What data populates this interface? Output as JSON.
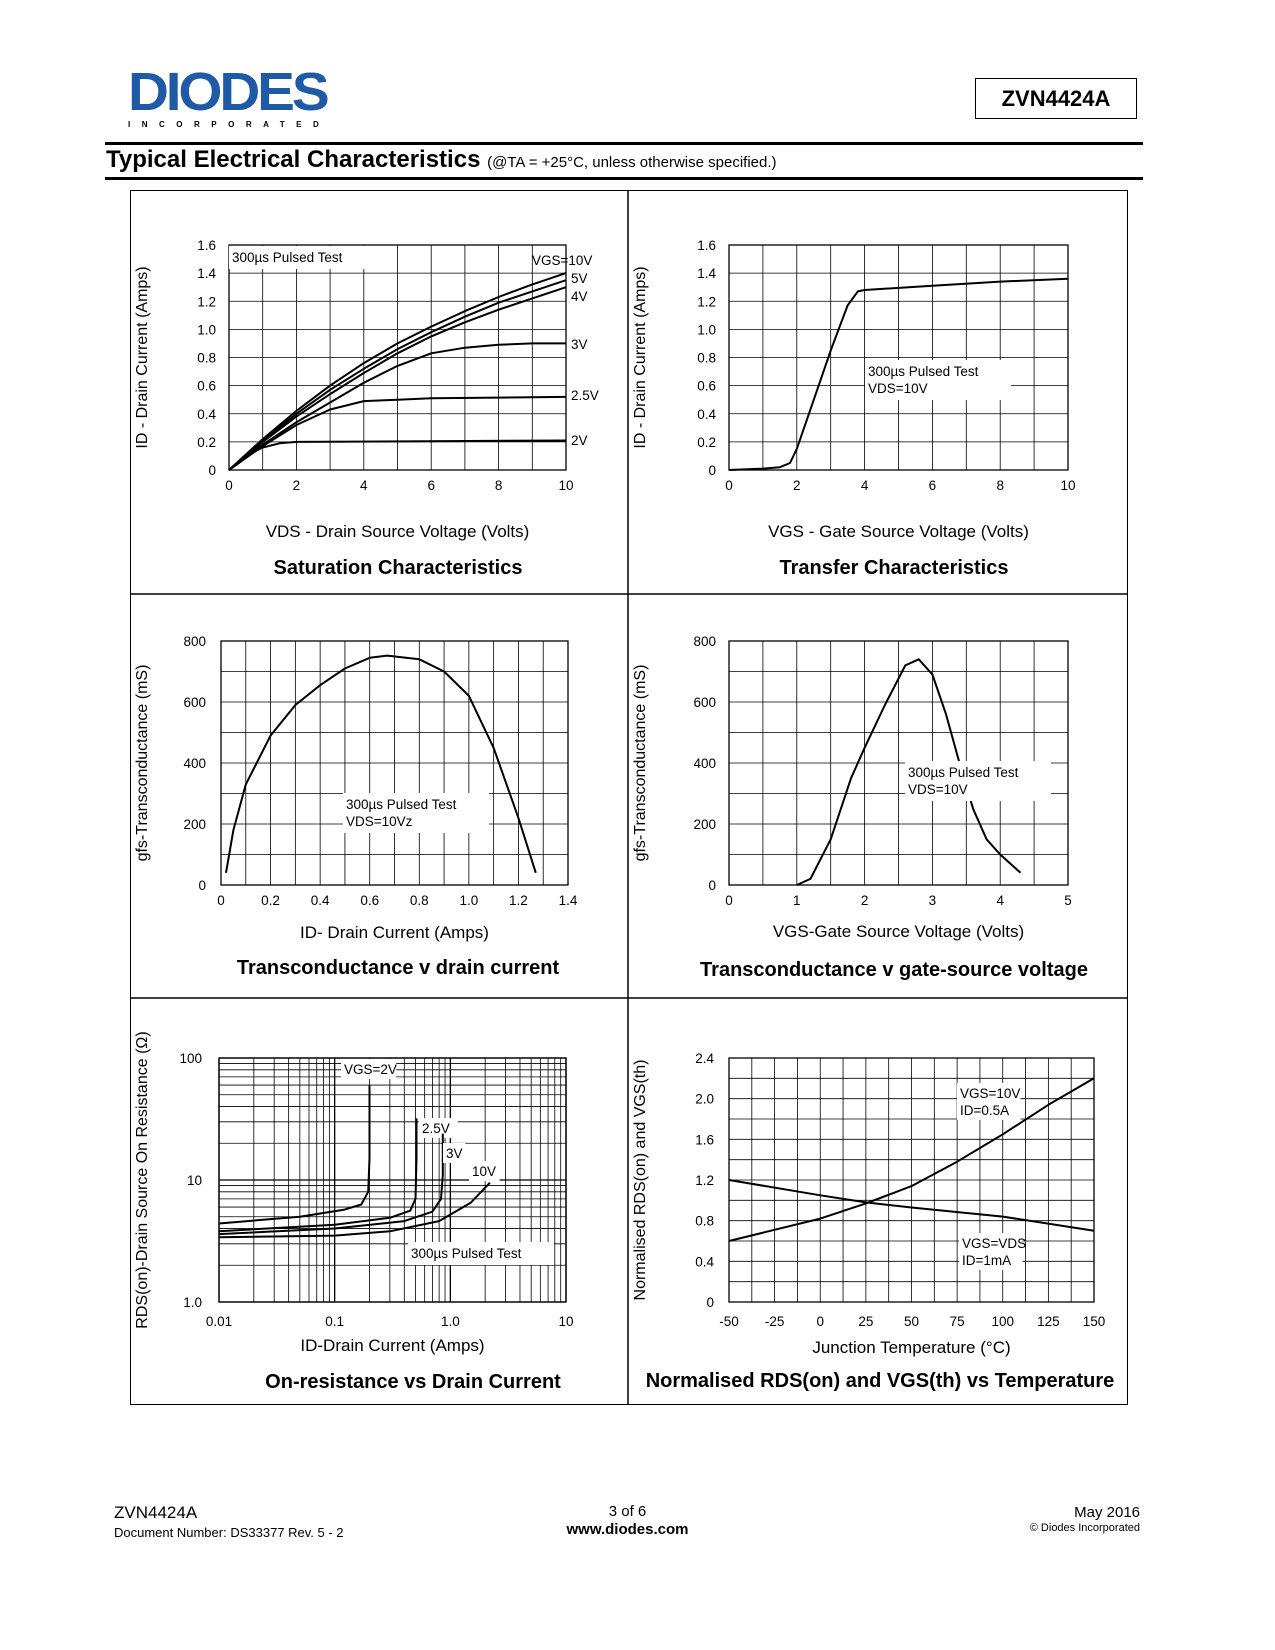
{
  "header": {
    "logo_text": "DIODES",
    "logo_subtext": "INCORPORATED",
    "part_number": "ZVN4424A",
    "section_title": "Typical Electrical Characteristics",
    "section_condition": "(@TA = +25°C, unless otherwise specified.)"
  },
  "footer": {
    "part_number": "ZVN4424A",
    "document_number": "Document Number: DS33377  Rev. 5 - 2",
    "page": "3 of 6",
    "website": "www.diodes.com",
    "date": "May 2016",
    "copyright": "© Diodes Incorporated"
  },
  "colors": {
    "logo_blue": "#1f5aa6",
    "ink": "#000000"
  },
  "chart_data": [
    {
      "type": "line",
      "title": "Saturation Characteristics",
      "xlabel": "VDS - Drain Source Voltage (Volts)",
      "ylabel": "ID - Drain Current (Amps)",
      "xlim": [
        0,
        10
      ],
      "ylim": [
        0,
        1.6
      ],
      "grid": true,
      "xticks": [
        0,
        2,
        4,
        6,
        8,
        10
      ],
      "yticks": [
        "0",
        "0.2",
        "0.4",
        "0.6",
        "0.8",
        "1.0",
        "1.2",
        "1.4",
        "1.6"
      ],
      "annotations": [
        [
          "300µs Pulsed Test"
        ]
      ],
      "series": [
        {
          "name": "VGS=10V",
          "points": [
            [
              0,
              0
            ],
            [
              1,
              0.22
            ],
            [
              2,
              0.42
            ],
            [
              3,
              0.6
            ],
            [
              4,
              0.76
            ],
            [
              5,
              0.9
            ],
            [
              6,
              1.02
            ],
            [
              7,
              1.13
            ],
            [
              8,
              1.23
            ],
            [
              9,
              1.32
            ],
            [
              10,
              1.4
            ]
          ]
        },
        {
          "name": "5V",
          "points": [
            [
              0,
              0
            ],
            [
              1,
              0.21
            ],
            [
              2,
              0.4
            ],
            [
              3,
              0.57
            ],
            [
              4,
              0.72
            ],
            [
              5,
              0.86
            ],
            [
              6,
              0.98
            ],
            [
              7,
              1.09
            ],
            [
              8,
              1.19
            ],
            [
              9,
              1.27
            ],
            [
              10,
              1.35
            ]
          ]
        },
        {
          "name": "4V",
          "points": [
            [
              0,
              0
            ],
            [
              1,
              0.2
            ],
            [
              2,
              0.38
            ],
            [
              3,
              0.54
            ],
            [
              4,
              0.69
            ],
            [
              5,
              0.83
            ],
            [
              6,
              0.95
            ],
            [
              7,
              1.05
            ],
            [
              8,
              1.14
            ],
            [
              9,
              1.22
            ],
            [
              10,
              1.3
            ]
          ]
        },
        {
          "name": "3V",
          "points": [
            [
              0,
              0
            ],
            [
              1,
              0.18
            ],
            [
              2,
              0.34
            ],
            [
              3,
              0.48
            ],
            [
              4,
              0.62
            ],
            [
              5,
              0.74
            ],
            [
              6,
              0.83
            ],
            [
              7,
              0.87
            ],
            [
              8,
              0.89
            ],
            [
              9,
              0.9
            ],
            [
              10,
              0.9
            ]
          ]
        },
        {
          "name": "2.5V",
          "points": [
            [
              0,
              0
            ],
            [
              1,
              0.17
            ],
            [
              2,
              0.32
            ],
            [
              3,
              0.43
            ],
            [
              4,
              0.49
            ],
            [
              5,
              0.5
            ],
            [
              6,
              0.51
            ],
            [
              10,
              0.52
            ]
          ]
        },
        {
          "name": "2V",
          "points": [
            [
              0,
              0
            ],
            [
              0.5,
              0.1
            ],
            [
              1,
              0.16
            ],
            [
              1.5,
              0.19
            ],
            [
              2,
              0.2
            ],
            [
              10,
              0.21
            ]
          ]
        }
      ]
    },
    {
      "type": "line",
      "title": "Transfer Characteristics",
      "xlabel": "VGS - Gate Source Voltage (Volts)",
      "ylabel": "ID - Drain Current (Amps)",
      "xlim": [
        0,
        10
      ],
      "ylim": [
        0,
        1.6
      ],
      "grid": true,
      "xticks": [
        0,
        2,
        4,
        6,
        8,
        10
      ],
      "yticks": [
        "0",
        "0.2",
        "0.4",
        "0.6",
        "0.8",
        "1.0",
        "1.2",
        "1.4",
        "1.6"
      ],
      "annotations": [
        [
          "300µs Pulsed Test",
          "VDS=10V"
        ]
      ],
      "series": [
        {
          "name": "",
          "points": [
            [
              0,
              0
            ],
            [
              1,
              0.01
            ],
            [
              1.5,
              0.02
            ],
            [
              1.8,
              0.05
            ],
            [
              2,
              0.15
            ],
            [
              2.5,
              0.5
            ],
            [
              3,
              0.85
            ],
            [
              3.5,
              1.17
            ],
            [
              3.8,
              1.27
            ],
            [
              4,
              1.28
            ],
            [
              6,
              1.31
            ],
            [
              8,
              1.34
            ],
            [
              10,
              1.36
            ]
          ]
        }
      ]
    },
    {
      "type": "line",
      "title": "Transconductance v drain current",
      "xlabel": "ID- Drain Current (Amps)",
      "ylabel": "gfs-Transconductance (mS)",
      "xlim": [
        0,
        1.4
      ],
      "ylim": [
        0,
        800
      ],
      "grid": true,
      "xticks": [
        "0",
        "0.2",
        "0.4",
        "0.6",
        "0.8",
        "1.0",
        "1.2",
        "1.4"
      ],
      "yticks": [
        "0",
        "200",
        "400",
        "600",
        "800"
      ],
      "annotations": [
        [
          "300µs Pulsed Test",
          "VDS=10Vz"
        ]
      ],
      "series": [
        {
          "name": "",
          "points": [
            [
              0.02,
              40
            ],
            [
              0.05,
              180
            ],
            [
              0.1,
              330
            ],
            [
              0.2,
              490
            ],
            [
              0.3,
              590
            ],
            [
              0.4,
              655
            ],
            [
              0.5,
              710
            ],
            [
              0.6,
              745
            ],
            [
              0.67,
              752
            ],
            [
              0.8,
              740
            ],
            [
              0.9,
              700
            ],
            [
              1.0,
              620
            ],
            [
              1.1,
              450
            ],
            [
              1.2,
              220
            ],
            [
              1.27,
              40
            ]
          ]
        }
      ]
    },
    {
      "type": "line",
      "title": "Transconductance v gate-source voltage",
      "xlabel": "VGS-Gate Source Voltage (Volts)",
      "ylabel": "gfs-Transconductance (mS)",
      "xlim": [
        0,
        5
      ],
      "ylim": [
        0,
        800
      ],
      "grid": true,
      "xticks": [
        0,
        1,
        2,
        3,
        4,
        5
      ],
      "yticks": [
        "0",
        "200",
        "400",
        "600",
        "800"
      ],
      "annotations": [
        [
          "300µs Pulsed Test",
          "VDS=10V"
        ]
      ],
      "series": [
        {
          "name": "",
          "points": [
            [
              1,
              0
            ],
            [
              1.2,
              20
            ],
            [
              1.5,
              150
            ],
            [
              1.8,
              350
            ],
            [
              2,
              450
            ],
            [
              2.3,
              590
            ],
            [
              2.6,
              720
            ],
            [
              2.8,
              740
            ],
            [
              3,
              690
            ],
            [
              3.2,
              560
            ],
            [
              3.4,
              400
            ],
            [
              3.6,
              250
            ],
            [
              3.8,
              150
            ],
            [
              4,
              100
            ],
            [
              4.3,
              40
            ]
          ]
        }
      ]
    },
    {
      "type": "line",
      "title": "On-resistance vs Drain Current",
      "xlabel": "ID-Drain Current (Amps)",
      "ylabel": "RDS(on)-Drain Source On Resistance  (Ω)",
      "xscale": "log",
      "yscale": "log",
      "xlim": [
        0.01,
        10
      ],
      "ylim": [
        1,
        100
      ],
      "grid": true,
      "xticks": [
        "0.01",
        "0.1",
        "1.0",
        "10"
      ],
      "yticks": [
        "1.0",
        "10",
        "100"
      ],
      "annotations": [
        [
          "300µs Pulsed Test"
        ]
      ],
      "series": [
        {
          "name": "VGS=2V",
          "points": [
            [
              0.01,
              4.4
            ],
            [
              0.05,
              5.0
            ],
            [
              0.12,
              5.7
            ],
            [
              0.17,
              6.3
            ],
            [
              0.195,
              8
            ],
            [
              0.2,
              15
            ],
            [
              0.2,
              60
            ]
          ]
        },
        {
          "name": "2.5V",
          "points": [
            [
              0.01,
              3.8
            ],
            [
              0.1,
              4.3
            ],
            [
              0.3,
              4.9
            ],
            [
              0.45,
              5.6
            ],
            [
              0.5,
              7
            ],
            [
              0.51,
              15
            ],
            [
              0.51,
              32
            ]
          ]
        },
        {
          "name": "3V",
          "points": [
            [
              0.01,
              3.6
            ],
            [
              0.1,
              4.0
            ],
            [
              0.4,
              4.6
            ],
            [
              0.7,
              5.5
            ],
            [
              0.83,
              7
            ],
            [
              0.86,
              11
            ],
            [
              0.86,
              24
            ]
          ]
        },
        {
          "name": "10V",
          "points": [
            [
              0.01,
              3.4
            ],
            [
              0.1,
              3.5
            ],
            [
              0.3,
              3.8
            ],
            [
              0.8,
              4.6
            ],
            [
              1.5,
              6.5
            ],
            [
              2.2,
              9.5
            ]
          ]
        }
      ]
    },
    {
      "type": "line",
      "title": "Normalised RDS(on) and VGS(th) vs Temperature",
      "xlabel": "Junction Temperature (°C)",
      "ylabel": "Normalised RDS(on) and VGS(th)",
      "xlim": [
        -50,
        150
      ],
      "ylim": [
        0,
        2.4
      ],
      "grid": true,
      "xticks": [
        -50,
        -25,
        0,
        25,
        50,
        75,
        100,
        125,
        150
      ],
      "yticks": [
        "0",
        "0.4",
        "0.8",
        "1.2",
        "1.6",
        "2.0",
        "2.4"
      ],
      "annotations": [],
      "series": [
        {
          "name": "VGS=10V|ID=0.5A",
          "points": [
            [
              -50,
              0.6
            ],
            [
              0,
              0.82
            ],
            [
              25,
              0.97
            ],
            [
              50,
              1.14
            ],
            [
              75,
              1.38
            ],
            [
              100,
              1.65
            ],
            [
              125,
              1.94
            ],
            [
              150,
              2.2
            ]
          ]
        },
        {
          "name": "VGS=VDS|ID=1mA",
          "points": [
            [
              -50,
              1.2
            ],
            [
              0,
              1.05
            ],
            [
              25,
              0.98
            ],
            [
              50,
              0.93
            ],
            [
              100,
              0.84
            ],
            [
              150,
              0.7
            ]
          ]
        }
      ]
    }
  ]
}
